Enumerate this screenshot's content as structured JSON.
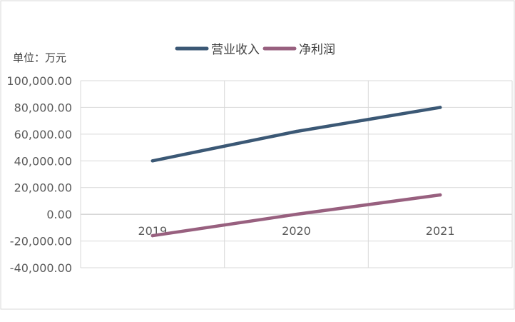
{
  "chart_data": {
    "type": "line",
    "unit_label": "单位：万元",
    "categories": [
      "2019",
      "2020",
      "2021"
    ],
    "series": [
      {
        "name": "营业收入",
        "color": "#3b5875",
        "values": [
          40000,
          62000,
          80000
        ]
      },
      {
        "name": "净利润",
        "color": "#98607f",
        "values": [
          -16000,
          0,
          14500
        ]
      }
    ],
    "ylim": [
      -40000,
      100000
    ],
    "yticks": [
      100000,
      80000,
      60000,
      40000,
      20000,
      0,
      -20000,
      -40000
    ],
    "ytick_labels": [
      "100,000.00",
      "80,000.00",
      "60,000.00",
      "40,000.00",
      "20,000.00",
      "0.00",
      "-20,000.00",
      "-40,000.00"
    ],
    "grid": true,
    "legend_position": "top-center"
  }
}
